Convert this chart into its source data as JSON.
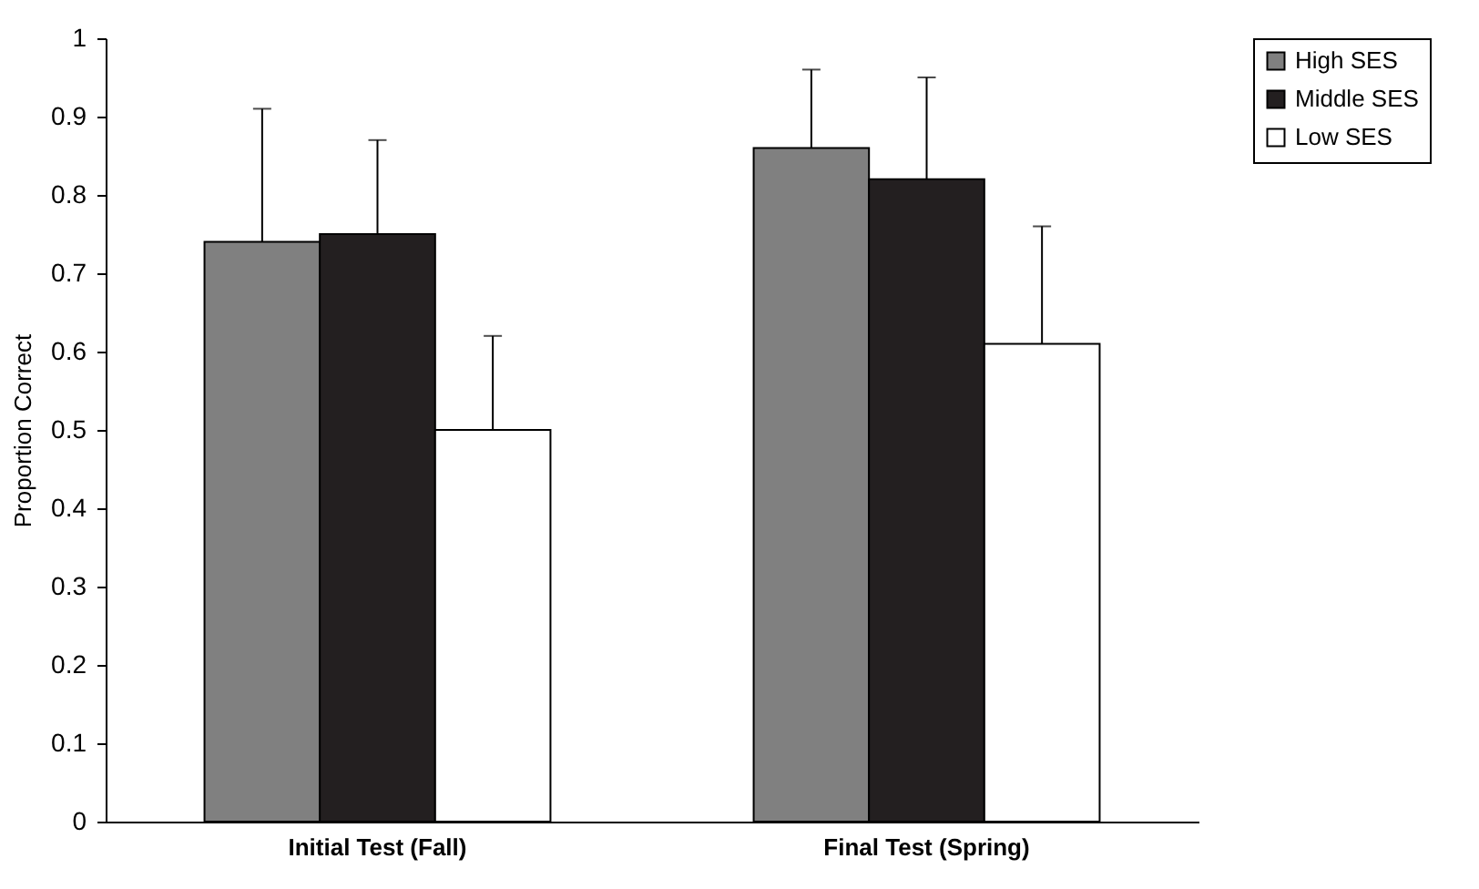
{
  "chart_data": {
    "type": "bar",
    "ylabel": "Proportion Correct",
    "categories": [
      "Initial Test (Fall)",
      "Final Test (Spring)"
    ],
    "series": [
      {
        "name": "High SES",
        "color": "#808080",
        "values": [
          0.74,
          0.86
        ],
        "errors": [
          [
            0.74,
            0.91
          ],
          [
            0.86,
            0.96
          ]
        ]
      },
      {
        "name": "Middle SES",
        "color": "#231f20",
        "values": [
          0.75,
          0.82
        ],
        "errors": [
          [
            0.75,
            0.87
          ],
          [
            0.82,
            0.95
          ]
        ]
      },
      {
        "name": "Low SES",
        "color": "#ffffff",
        "values": [
          0.5,
          0.61
        ],
        "errors": [
          [
            0.5,
            0.62
          ],
          [
            0.61,
            0.76
          ]
        ]
      }
    ],
    "ylim": [
      0,
      1
    ],
    "yticks": [
      0,
      0.1,
      0.2,
      0.3,
      0.4,
      0.5,
      0.6,
      0.7,
      0.8,
      0.9,
      1
    ],
    "grid": false,
    "legend": "right"
  }
}
